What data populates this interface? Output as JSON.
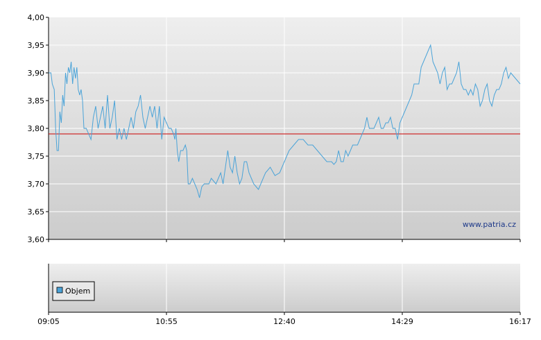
{
  "chart_data": [
    {
      "type": "line",
      "title": "",
      "xlabel": "",
      "ylabel": "",
      "ylim": [
        3.6,
        4.0
      ],
      "y_ticks": [
        "4,00",
        "3,95",
        "3,90",
        "3,85",
        "3,80",
        "3,75",
        "3,70",
        "3,65",
        "3,60"
      ],
      "x_ticks": [
        "09:05",
        "10:55",
        "12:40",
        "14:29",
        "16:17"
      ],
      "reference_line": {
        "value": 3.79,
        "color": "#cc0000"
      },
      "grid": true,
      "series": [
        {
          "color": "#4aa3d8",
          "points": [
            [
              0.0,
              3.9
            ],
            [
              0.005,
              3.9
            ],
            [
              0.008,
              3.88
            ],
            [
              0.012,
              3.87
            ],
            [
              0.015,
              3.8
            ],
            [
              0.018,
              3.76
            ],
            [
              0.021,
              3.76
            ],
            [
              0.024,
              3.83
            ],
            [
              0.027,
              3.81
            ],
            [
              0.03,
              3.86
            ],
            [
              0.033,
              3.84
            ],
            [
              0.036,
              3.9
            ],
            [
              0.039,
              3.88
            ],
            [
              0.042,
              3.91
            ],
            [
              0.045,
              3.9
            ],
            [
              0.048,
              3.92
            ],
            [
              0.051,
              3.88
            ],
            [
              0.054,
              3.91
            ],
            [
              0.057,
              3.89
            ],
            [
              0.06,
              3.91
            ],
            [
              0.063,
              3.87
            ],
            [
              0.066,
              3.86
            ],
            [
              0.069,
              3.87
            ],
            [
              0.072,
              3.85
            ],
            [
              0.075,
              3.8
            ],
            [
              0.08,
              3.8
            ],
            [
              0.085,
              3.79
            ],
            [
              0.09,
              3.78
            ],
            [
              0.095,
              3.82
            ],
            [
              0.1,
              3.84
            ],
            [
              0.105,
              3.8
            ],
            [
              0.11,
              3.82
            ],
            [
              0.115,
              3.84
            ],
            [
              0.12,
              3.8
            ],
            [
              0.125,
              3.86
            ],
            [
              0.13,
              3.8
            ],
            [
              0.135,
              3.82
            ],
            [
              0.14,
              3.85
            ],
            [
              0.145,
              3.78
            ],
            [
              0.15,
              3.8
            ],
            [
              0.155,
              3.78
            ],
            [
              0.16,
              3.8
            ],
            [
              0.165,
              3.78
            ],
            [
              0.17,
              3.8
            ],
            [
              0.175,
              3.82
            ],
            [
              0.18,
              3.8
            ],
            [
              0.185,
              3.83
            ],
            [
              0.19,
              3.84
            ],
            [
              0.195,
              3.86
            ],
            [
              0.2,
              3.82
            ],
            [
              0.205,
              3.8
            ],
            [
              0.21,
              3.82
            ],
            [
              0.215,
              3.84
            ],
            [
              0.22,
              3.82
            ],
            [
              0.225,
              3.84
            ],
            [
              0.23,
              3.8
            ],
            [
              0.235,
              3.84
            ],
            [
              0.24,
              3.78
            ],
            [
              0.245,
              3.82
            ],
            [
              0.25,
              3.81
            ],
            [
              0.255,
              3.8
            ],
            [
              0.26,
              3.8
            ],
            [
              0.265,
              3.79
            ],
            [
              0.268,
              3.78
            ],
            [
              0.27,
              3.8
            ],
            [
              0.273,
              3.76
            ],
            [
              0.276,
              3.74
            ],
            [
              0.28,
              3.76
            ],
            [
              0.285,
              3.76
            ],
            [
              0.29,
              3.77
            ],
            [
              0.293,
              3.76
            ],
            [
              0.296,
              3.7
            ],
            [
              0.3,
              3.7
            ],
            [
              0.305,
              3.71
            ],
            [
              0.31,
              3.7
            ],
            [
              0.315,
              3.69
            ],
            [
              0.32,
              3.675
            ],
            [
              0.325,
              3.695
            ],
            [
              0.33,
              3.7
            ],
            [
              0.335,
              3.7
            ],
            [
              0.34,
              3.7
            ],
            [
              0.345,
              3.71
            ],
            [
              0.35,
              3.705
            ],
            [
              0.355,
              3.7
            ],
            [
              0.36,
              3.71
            ],
            [
              0.365,
              3.72
            ],
            [
              0.37,
              3.7
            ],
            [
              0.375,
              3.73
            ],
            [
              0.38,
              3.76
            ],
            [
              0.385,
              3.73
            ],
            [
              0.39,
              3.72
            ],
            [
              0.395,
              3.75
            ],
            [
              0.4,
              3.72
            ],
            [
              0.405,
              3.7
            ],
            [
              0.41,
              3.71
            ],
            [
              0.415,
              3.74
            ],
            [
              0.42,
              3.74
            ],
            [
              0.425,
              3.72
            ],
            [
              0.43,
              3.71
            ],
            [
              0.435,
              3.7
            ],
            [
              0.44,
              3.695
            ],
            [
              0.445,
              3.69
            ],
            [
              0.45,
              3.7
            ],
            [
              0.46,
              3.72
            ],
            [
              0.47,
              3.73
            ],
            [
              0.48,
              3.715
            ],
            [
              0.49,
              3.72
            ],
            [
              0.5,
              3.74
            ],
            [
              0.51,
              3.76
            ],
            [
              0.52,
              3.77
            ],
            [
              0.53,
              3.78
            ],
            [
              0.54,
              3.78
            ],
            [
              0.55,
              3.77
            ],
            [
              0.56,
              3.77
            ],
            [
              0.57,
              3.76
            ],
            [
              0.58,
              3.75
            ],
            [
              0.59,
              3.74
            ],
            [
              0.6,
              3.74
            ],
            [
              0.605,
              3.735
            ],
            [
              0.61,
              3.74
            ],
            [
              0.615,
              3.76
            ],
            [
              0.62,
              3.74
            ],
            [
              0.625,
              3.74
            ],
            [
              0.63,
              3.76
            ],
            [
              0.635,
              3.75
            ],
            [
              0.64,
              3.76
            ],
            [
              0.645,
              3.77
            ],
            [
              0.655,
              3.77
            ],
            [
              0.66,
              3.78
            ],
            [
              0.665,
              3.79
            ],
            [
              0.67,
              3.8
            ],
            [
              0.675,
              3.82
            ],
            [
              0.68,
              3.8
            ],
            [
              0.685,
              3.8
            ],
            [
              0.69,
              3.8
            ],
            [
              0.695,
              3.81
            ],
            [
              0.7,
              3.82
            ],
            [
              0.705,
              3.8
            ],
            [
              0.71,
              3.8
            ],
            [
              0.715,
              3.81
            ],
            [
              0.72,
              3.81
            ],
            [
              0.725,
              3.82
            ],
            [
              0.73,
              3.8
            ],
            [
              0.735,
              3.8
            ],
            [
              0.74,
              3.78
            ],
            [
              0.745,
              3.81
            ],
            [
              0.75,
              3.82
            ],
            [
              0.755,
              3.83
            ],
            [
              0.76,
              3.84
            ],
            [
              0.765,
              3.85
            ],
            [
              0.77,
              3.86
            ],
            [
              0.775,
              3.88
            ],
            [
              0.78,
              3.88
            ],
            [
              0.785,
              3.88
            ],
            [
              0.79,
              3.91
            ],
            [
              0.795,
              3.92
            ],
            [
              0.8,
              3.93
            ],
            [
              0.805,
              3.94
            ],
            [
              0.81,
              3.95
            ],
            [
              0.815,
              3.92
            ],
            [
              0.82,
              3.91
            ],
            [
              0.825,
              3.9
            ],
            [
              0.83,
              3.88
            ],
            [
              0.835,
              3.9
            ],
            [
              0.84,
              3.91
            ],
            [
              0.845,
              3.87
            ],
            [
              0.85,
              3.88
            ],
            [
              0.855,
              3.88
            ],
            [
              0.86,
              3.89
            ],
            [
              0.865,
              3.9
            ],
            [
              0.87,
              3.92
            ],
            [
              0.875,
              3.88
            ],
            [
              0.88,
              3.87
            ],
            [
              0.885,
              3.87
            ],
            [
              0.89,
              3.86
            ],
            [
              0.895,
              3.87
            ],
            [
              0.9,
              3.86
            ],
            [
              0.905,
              3.88
            ],
            [
              0.91,
              3.87
            ],
            [
              0.915,
              3.84
            ],
            [
              0.92,
              3.85
            ],
            [
              0.925,
              3.87
            ],
            [
              0.93,
              3.88
            ],
            [
              0.935,
              3.85
            ],
            [
              0.94,
              3.84
            ],
            [
              0.945,
              3.86
            ],
            [
              0.95,
              3.87
            ],
            [
              0.955,
              3.87
            ],
            [
              0.96,
              3.88
            ],
            [
              0.965,
              3.9
            ],
            [
              0.97,
              3.91
            ],
            [
              0.975,
              3.89
            ],
            [
              0.98,
              3.9
            ],
            [
              0.99,
              3.89
            ],
            [
              1.0,
              3.88
            ]
          ]
        }
      ]
    },
    {
      "type": "bar",
      "title": "",
      "legend": {
        "entries": [
          "Objem"
        ],
        "placement": "bottom-left"
      },
      "x_ticks": [
        "09:05",
        "10:55",
        "12:40",
        "14:29",
        "16:17"
      ],
      "values": []
    }
  ],
  "watermark": "www.patria.cz",
  "colors": {
    "line": "#4aa3d8",
    "reference": "#cc0000",
    "axis": "#000000",
    "grid": "#ffffff",
    "legend_swatch": "#4aa3d8"
  }
}
